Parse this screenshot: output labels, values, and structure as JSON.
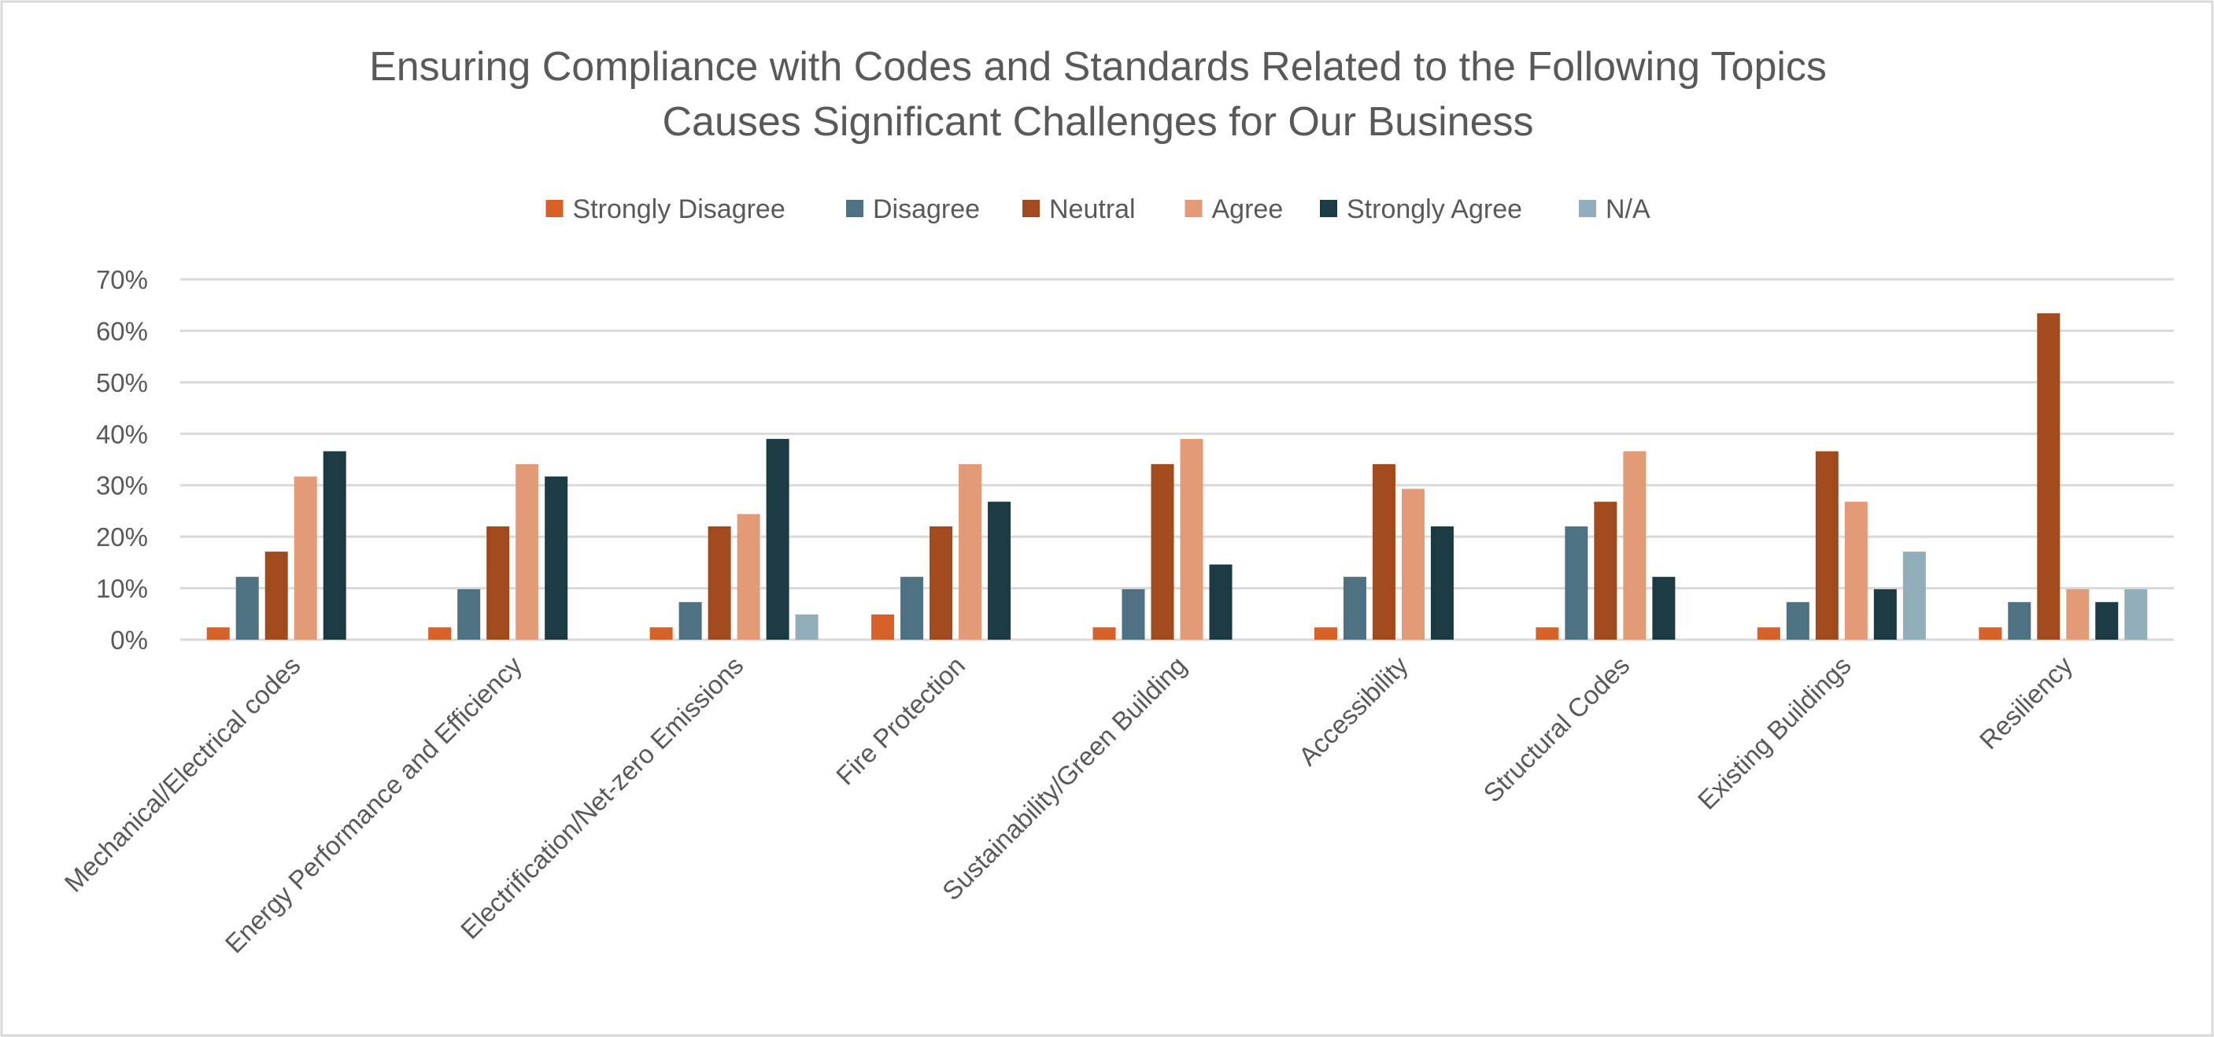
{
  "chart_data": {
    "type": "bar",
    "title": [
      "Ensuring Compliance with Codes and Standards Related to the Following Topics",
      "Causes Significant Challenges for Our Business"
    ],
    "xlabel": "",
    "ylabel": "",
    "ylim": [
      0,
      70
    ],
    "yticks": [
      "0%",
      "10%",
      "20%",
      "30%",
      "40%",
      "50%",
      "60%",
      "70%"
    ],
    "grid": true,
    "legend_position": "top",
    "categories": [
      "Mechanical/Electrical codes",
      "Energy Performance and Efficiency",
      "Electrification/Net-zero Emissions",
      "Fire Protection",
      "Sustainability/Green Building",
      "Accessibility",
      "Structural Codes",
      "Existing Buildings",
      "Resiliency"
    ],
    "series": [
      {
        "name": "Strongly Disagree",
        "color": "#D6622A",
        "values": [
          2.4,
          2.4,
          2.4,
          4.9,
          2.4,
          2.4,
          2.4,
          2.4,
          2.4
        ]
      },
      {
        "name": "Disagree",
        "color": "#4F7282",
        "values": [
          12.2,
          9.8,
          7.3,
          12.2,
          9.8,
          12.2,
          22.0,
          7.3,
          7.3
        ]
      },
      {
        "name": "Neutral",
        "color": "#A04A1E",
        "values": [
          17.1,
          22.0,
          22.0,
          22.0,
          34.1,
          34.1,
          26.8,
          36.6,
          63.4
        ]
      },
      {
        "name": "Agree",
        "color": "#E29B76",
        "values": [
          31.7,
          34.1,
          24.4,
          34.1,
          39.0,
          29.3,
          36.6,
          26.8,
          9.8
        ]
      },
      {
        "name": "Strongly Agree",
        "color": "#1B3A44",
        "values": [
          36.6,
          31.7,
          39.0,
          26.8,
          14.6,
          22.0,
          12.2,
          9.8,
          7.3
        ]
      },
      {
        "name": "N/A",
        "color": "#93AEBB",
        "values": [
          0,
          0,
          4.9,
          0,
          0,
          0,
          0,
          17.1,
          9.8
        ]
      }
    ]
  }
}
